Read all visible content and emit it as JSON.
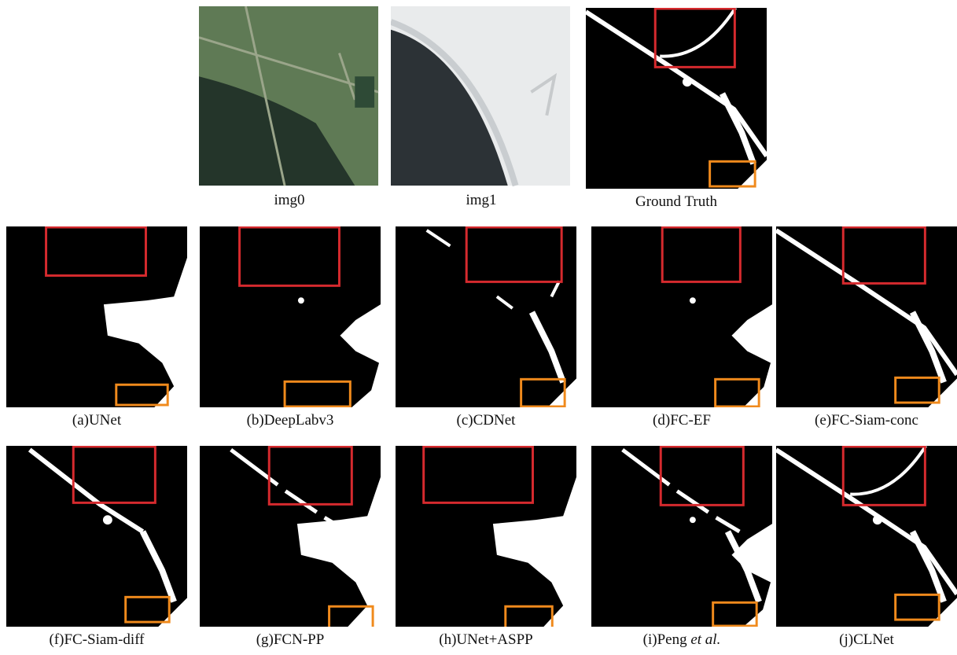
{
  "figure": {
    "panels": [
      {
        "caption": "img0"
      },
      {
        "caption": "img1"
      },
      {
        "caption": "Ground Truth"
      },
      {
        "caption": "(a)UNet"
      },
      {
        "caption": "(b)DeepLabv3"
      },
      {
        "caption": "(c)CDNet"
      },
      {
        "caption": "(d)FC-EF"
      },
      {
        "caption": "(e)FC-Siam-conc"
      },
      {
        "caption": "(f)FC-Siam-diff"
      },
      {
        "caption": "(g)FCN-PP"
      },
      {
        "caption": "(h)UNet+ASPP"
      },
      {
        "caption": "(i)Peng ",
        "caption_italic": "et al."
      },
      {
        "caption": "(j)CLNet"
      }
    ]
  }
}
